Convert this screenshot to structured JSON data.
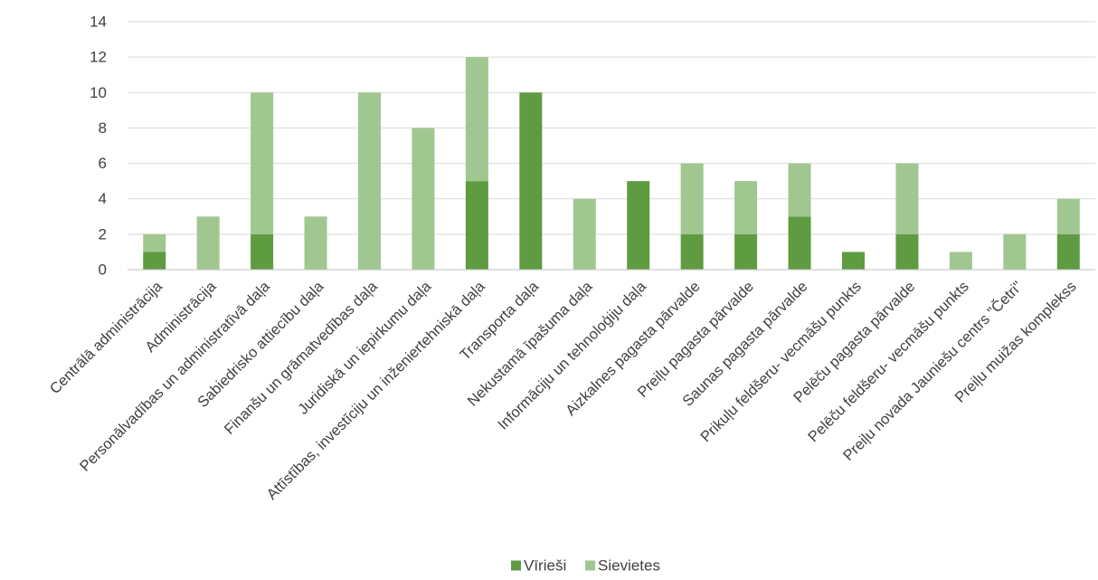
{
  "chart_data": {
    "type": "bar",
    "stacked": true,
    "title": "",
    "xlabel": "",
    "ylabel": "",
    "ylim": [
      0,
      14
    ],
    "yticks": [
      0,
      2,
      4,
      6,
      8,
      10,
      12,
      14
    ],
    "grid": true,
    "legend_position": "bottom",
    "categories": [
      "Centrālā administrācija",
      "Administrācija",
      "Personālvadības un administratīvā daļa",
      "Sabiedrisko attiecību daļa",
      "Finanšu un grāmatvedības daļa",
      "Juridiskā un iepirkumu daļa",
      "Attīstības, investīciju un inženiertehniskā daļa",
      "Transporta daļa",
      "Nekustamā īpašuma daļa",
      "Informāciju un tehnoloģiju daļa",
      "Aizkalnes pagasta pārvalde",
      "Preiļu pagasta pārvalde",
      "Saunas pagasta pārvalde",
      "Prikuļu feldšeru- vecmāšu punkts",
      "Pelēču pagasta pārvalde",
      "Pelēču feldšeru- vecmāšu punkts",
      "Preiļu novada Jauniešu centrs \"Četri\"",
      "Preiļu muižas komplekss"
    ],
    "series": [
      {
        "name": "Vīrieši",
        "color": "#5f9b40",
        "values": [
          1,
          0,
          2,
          0,
          0,
          0,
          5,
          10,
          0,
          5,
          2,
          2,
          3,
          1,
          2,
          0,
          0,
          2
        ]
      },
      {
        "name": "Sievietes",
        "color": "#a1c791",
        "values": [
          1,
          3,
          8,
          3,
          10,
          8,
          7,
          0,
          4,
          0,
          4,
          3,
          3,
          0,
          4,
          1,
          2,
          2
        ]
      }
    ]
  }
}
